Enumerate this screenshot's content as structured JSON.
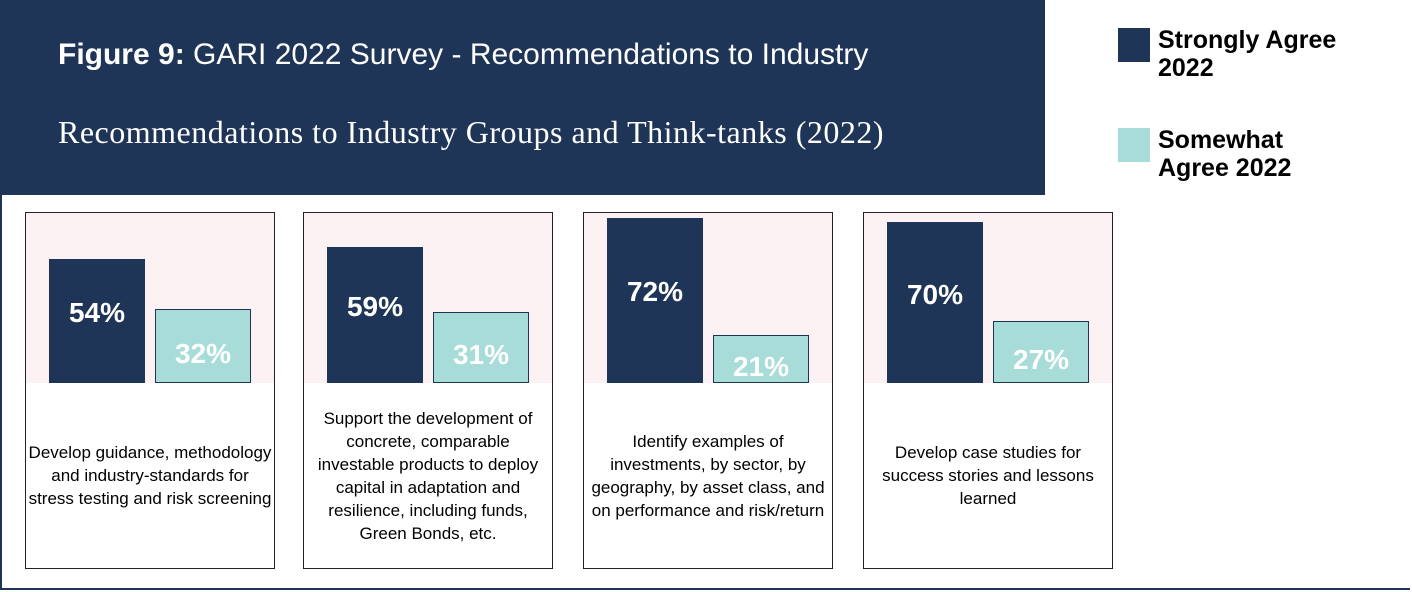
{
  "chart_data": {
    "type": "bar",
    "figure_label": "Figure 9:",
    "title": "GARI 2022 Survey - Recommendations to Industry",
    "subtitle": "Recommendations to Industry Groups and Think-tanks (2022)",
    "categories": [
      "Develop guidance, methodology and industry-standards for stress testing and risk screening",
      "Support the development of concrete, comparable investable products to deploy capital in adaptation and resilience, including funds, Green Bonds, etc.",
      "Identify examples of investments, by sector, by geography, by asset class, and on performance and risk/return",
      "Develop case studies for success stories and lessons learned"
    ],
    "series": [
      {
        "name": "Strongly Agree 2022",
        "color": "#1e3557",
        "values": [
          54,
          59,
          72,
          70
        ],
        "value_labels": [
          "54%",
          "59%",
          "72%",
          "70%"
        ]
      },
      {
        "name": "Somewhat Agree 2022",
        "color": "#a8dcd9",
        "values": [
          32,
          31,
          21,
          27
        ],
        "value_labels": [
          "32%",
          "31%",
          "21%",
          "27%"
        ]
      }
    ],
    "ylim": [
      0,
      74
    ]
  }
}
